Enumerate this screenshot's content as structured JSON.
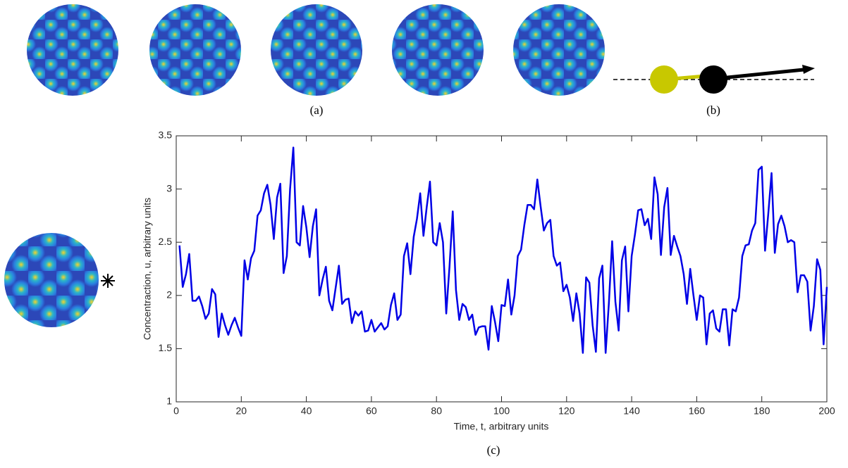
{
  "panel_labels": [
    "(a)",
    "(b)",
    "(c)"
  ],
  "chart_data": {
    "type": "line",
    "xlabel": "Time, t, arbitrary units",
    "ylabel": "Concentraction, u, arbitrary units",
    "xlim": [
      0,
      200
    ],
    "xticks": [
      0,
      20,
      40,
      60,
      80,
      100,
      120,
      140,
      160,
      180,
      200
    ],
    "ylim": [
      1,
      3.5
    ],
    "yticks": [
      1,
      1.5,
      2,
      2.5,
      3,
      3.5
    ],
    "grid": false,
    "x": [
      1,
      2,
      3,
      4,
      5,
      6,
      7,
      8,
      9,
      10,
      11,
      12,
      13,
      14,
      15,
      16,
      17,
      18,
      19,
      20,
      21,
      22,
      23,
      24,
      25,
      26,
      27,
      28,
      29,
      30,
      31,
      32,
      33,
      34,
      35,
      36,
      37,
      38,
      39,
      40,
      41,
      42,
      43,
      44,
      45,
      46,
      47,
      48,
      49,
      50,
      51,
      52,
      53,
      54,
      55,
      56,
      57,
      58,
      59,
      60,
      61,
      62,
      63,
      64,
      65,
      66,
      67,
      68,
      69,
      70,
      71,
      72,
      73,
      74,
      75,
      76,
      77,
      78,
      79,
      80,
      81,
      82,
      83,
      84,
      85,
      86,
      87,
      88,
      89,
      90,
      91,
      92,
      93,
      94,
      95,
      96,
      97,
      98,
      99,
      100,
      101,
      102,
      103,
      104,
      105,
      106,
      107,
      108,
      109,
      110,
      111,
      112,
      113,
      114,
      115,
      116,
      117,
      118,
      119,
      120,
      121,
      122,
      123,
      124,
      125,
      126,
      127,
      128,
      129,
      130,
      131,
      132,
      133,
      134,
      135,
      136,
      137,
      138,
      139,
      140,
      141,
      142,
      143,
      144,
      145,
      146,
      147,
      148,
      149,
      150,
      151,
      152,
      153,
      154,
      155,
      156,
      157,
      158,
      159,
      160,
      161,
      162,
      163,
      164,
      165,
      166,
      167,
      168,
      169,
      170,
      171,
      172,
      173,
      174,
      175,
      176,
      177,
      178,
      179,
      180,
      181,
      182,
      183,
      184,
      185,
      186,
      187,
      188,
      189,
      190,
      191,
      192,
      193,
      194,
      195,
      196,
      197,
      198,
      199,
      200
    ],
    "series": [
      {
        "color": "#0000e6",
        "values": [
          2.47,
          2.08,
          2.2,
          2.39,
          1.95,
          1.95,
          1.99,
          1.9,
          1.78,
          1.83,
          2.06,
          2.01,
          1.61,
          1.83,
          1.72,
          1.63,
          1.72,
          1.79,
          1.7,
          1.62,
          2.33,
          2.15,
          2.35,
          2.42,
          2.75,
          2.8,
          2.96,
          3.04,
          2.85,
          2.53,
          2.92,
          3.05,
          2.21,
          2.37,
          3.0,
          3.39,
          2.5,
          2.47,
          2.84,
          2.64,
          2.36,
          2.65,
          2.81,
          2.0,
          2.15,
          2.27,
          1.95,
          1.86,
          2.07,
          2.28,
          1.92,
          1.96,
          1.97,
          1.74,
          1.85,
          1.81,
          1.85,
          1.66,
          1.67,
          1.77,
          1.66,
          1.7,
          1.74,
          1.68,
          1.71,
          1.91,
          2.02,
          1.77,
          1.82,
          2.37,
          2.49,
          2.2,
          2.55,
          2.72,
          2.96,
          2.56,
          2.83,
          3.07,
          2.5,
          2.47,
          2.68,
          2.5,
          1.83,
          2.27,
          2.79,
          2.05,
          1.77,
          1.92,
          1.89,
          1.77,
          1.82,
          1.63,
          1.7,
          1.71,
          1.71,
          1.49,
          1.9,
          1.75,
          1.57,
          1.91,
          1.9,
          2.15,
          1.82,
          2.0,
          2.37,
          2.43,
          2.66,
          2.85,
          2.85,
          2.81,
          3.09,
          2.84,
          2.61,
          2.68,
          2.71,
          2.37,
          2.28,
          2.31,
          2.04,
          2.1,
          1.98,
          1.76,
          2.02,
          1.83,
          1.46,
          2.17,
          2.12,
          1.72,
          1.47,
          2.16,
          2.28,
          1.46,
          1.93,
          2.51,
          1.94,
          1.67,
          2.33,
          2.46,
          1.85,
          2.37,
          2.57,
          2.8,
          2.81,
          2.66,
          2.72,
          2.53,
          3.11,
          2.95,
          2.38,
          2.83,
          3.01,
          2.38,
          2.56,
          2.46,
          2.37,
          2.2,
          1.92,
          2.25,
          2.0,
          1.77,
          2.0,
          1.98,
          1.54,
          1.83,
          1.86,
          1.69,
          1.66,
          1.87,
          1.87,
          1.53,
          1.87,
          1.85,
          1.98,
          2.37,
          2.47,
          2.48,
          2.61,
          2.68,
          3.18,
          3.21,
          2.42,
          2.77,
          3.15,
          2.4,
          2.67,
          2.75,
          2.65,
          2.5,
          2.52,
          2.5,
          2.03,
          2.19,
          2.19,
          2.13,
          1.67,
          1.9,
          2.34,
          2.24,
          1.54,
          2.08
        ]
      }
    ]
  }
}
